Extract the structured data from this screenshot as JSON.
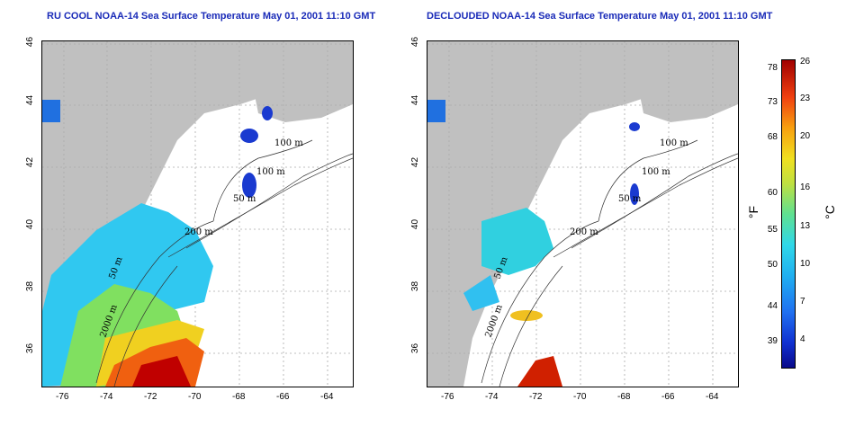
{
  "left_title": "RU COOL NOAA-14 Sea Surface Temperature May 01, 2001 11:10 GMT",
  "right_title": "DECLOUDED NOAA-14 Sea Surface Temperature May 01, 2001 11:10 GMT",
  "x_ticks": [
    "-76",
    "-74",
    "-72",
    "-70",
    "-68",
    "-66",
    "-64"
  ],
  "y_ticks": [
    "36",
    "38",
    "40",
    "42",
    "44",
    "46"
  ],
  "contour_labels": [
    "100 m",
    "100 m",
    "50 m",
    "200 m",
    "50 m",
    "2000 m"
  ],
  "colorbar": {
    "fahrenheit_label": "°F",
    "celsius_label": "°C",
    "fahrenheit_ticks": [
      "78",
      "73",
      "68",
      "60",
      "55",
      "50",
      "44",
      "39"
    ],
    "celsius_ticks": [
      "26",
      "23",
      "20",
      "16",
      "13",
      "10",
      "7",
      "4"
    ]
  },
  "colors": {
    "title": "#1a2bb8",
    "land": "#c0c0c0",
    "grid": "#aaaaaa"
  }
}
